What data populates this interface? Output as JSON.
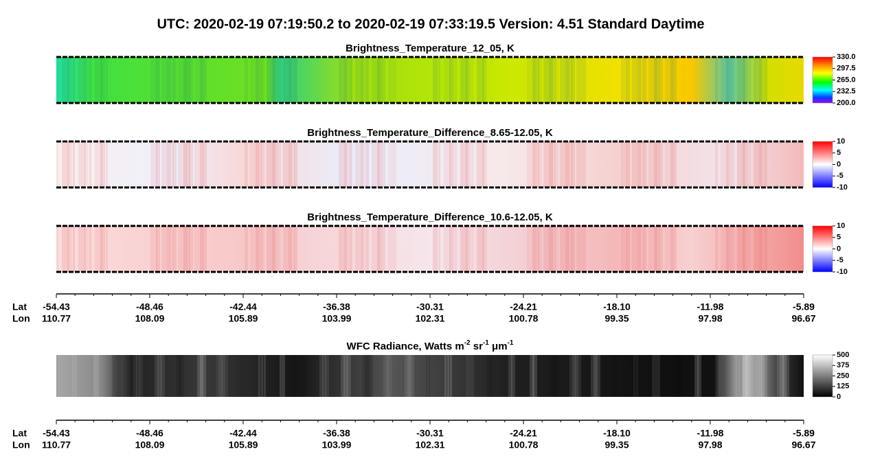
{
  "header": {
    "title": "UTC:  2020-02-19   07:19:50.2  to  2020-02-19   07:33:19.5    Version: 4.51  Standard Daytime"
  },
  "panels": [
    {
      "title": "Brightness_Temperature_12_05, K",
      "colorbar": [
        "330.0",
        "297.5",
        "265.0",
        "232.5",
        "200.0"
      ]
    },
    {
      "title": "Brightness_Temperature_Difference_8.65-12.05, K",
      "colorbar": [
        "10",
        "5",
        "0",
        "-5",
        "-10"
      ]
    },
    {
      "title": "Brightness_Temperature_Difference_10.6-12.05, K",
      "colorbar": [
        "10",
        "5",
        "0",
        "-5",
        "-10"
      ]
    }
  ],
  "axis": {
    "lat_label": "Lat",
    "lon_label": "Lon",
    "lat": [
      "-54.43",
      "-48.46",
      "-42.44",
      "-36.38",
      "-30.31",
      "-24.21",
      "-18.10",
      "-11.98",
      "-5.89"
    ],
    "lon": [
      "110.77",
      "108.09",
      "105.89",
      "103.99",
      "102.31",
      "100.78",
      "99.35",
      "97.98",
      "96.67"
    ]
  },
  "wfc": {
    "title": [
      "WFC Radiance, Watts m",
      "-2",
      " sr",
      "-1",
      " μm",
      "-1"
    ],
    "colorbar": [
      "500",
      "375",
      "250",
      "125",
      "0"
    ]
  }
}
